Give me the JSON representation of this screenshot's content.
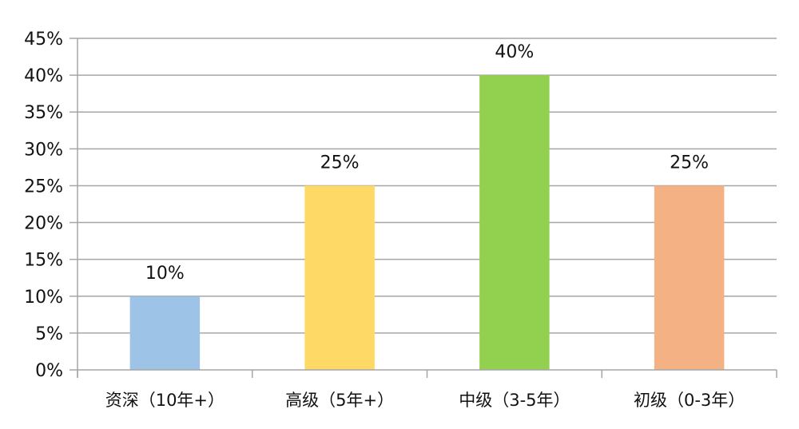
{
  "chart_data": {
    "type": "bar",
    "title": "",
    "xlabel": "",
    "ylabel": "",
    "categories": [
      "资深（10年+）",
      "高级（5年+）",
      "中级（3-5年）",
      "初级（0-3年）"
    ],
    "values": [
      10,
      25,
      40,
      25
    ],
    "data_labels": [
      "10%",
      "25%",
      "40%",
      "25%"
    ],
    "colors": [
      "#9DC3E6",
      "#FFD966",
      "#92D050",
      "#F4B183"
    ],
    "ylim": [
      0,
      45
    ],
    "yticks": [
      0,
      5,
      10,
      15,
      20,
      25,
      30,
      35,
      40,
      45
    ],
    "ytick_labels": [
      "0%",
      "5%",
      "10%",
      "15%",
      "20%",
      "25%",
      "30%",
      "35%",
      "40%",
      "45%"
    ],
    "grid": true,
    "legend": "none",
    "grid_color": "#A6A6A6"
  }
}
